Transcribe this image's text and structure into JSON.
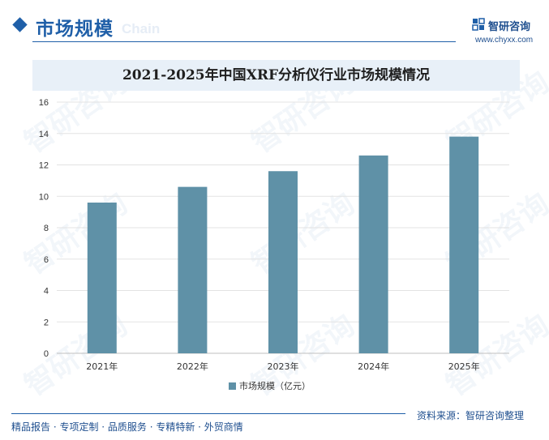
{
  "header": {
    "section_title": "市场规模",
    "watermark_text": "Chain",
    "logo_name": "智研咨询",
    "logo_url": "www.chyxx.com",
    "brand_color": "#1f5fa8"
  },
  "chart_data": {
    "type": "bar",
    "title": "2021-2025年中国XRF分析仪行业市场规模情况",
    "categories": [
      "2021年",
      "2022年",
      "2023年",
      "2024年",
      "2025年"
    ],
    "series": [
      {
        "name": "市场规模（亿元）",
        "values": [
          9.6,
          10.6,
          11.6,
          12.6,
          13.8
        ],
        "color": "#5f91a7"
      }
    ],
    "ylim": [
      0,
      16
    ],
    "yticks": [
      0,
      2,
      4,
      6,
      8,
      10,
      12,
      14,
      16
    ],
    "grid": true,
    "legend_position": "bottom"
  },
  "footer": {
    "left_text": "精品报告 · 专项定制 · 品质服务 · 专精特新 · 外贸商情",
    "source_text": "资料来源：智研咨询整理"
  }
}
